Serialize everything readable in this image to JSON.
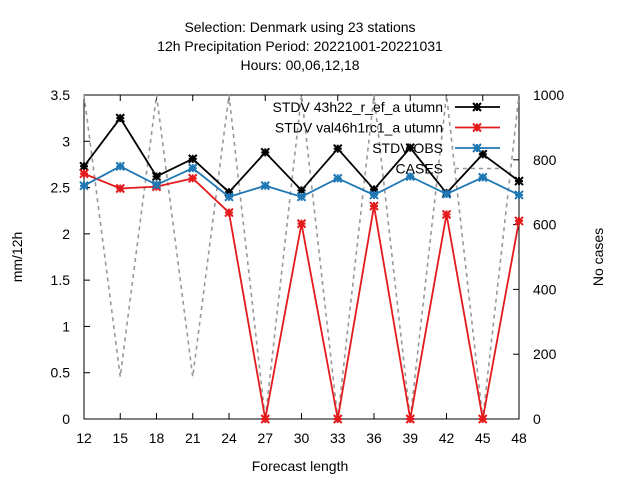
{
  "chart_data": {
    "type": "line",
    "title_lines": [
      "Selection: Denmark using    23 stations",
      "12h Precipitation    Period: 20221001-20221031",
      "Hours:  00,06,12,18"
    ],
    "xlabel": "Forecast length",
    "ylabel": "mm/12h",
    "y2label": "No cases",
    "x": [
      12,
      15,
      18,
      21,
      24,
      27,
      30,
      33,
      36,
      39,
      42,
      45,
      48
    ],
    "xlim": [
      12,
      48
    ],
    "ylim": [
      0,
      3.5
    ],
    "y2lim": [
      0,
      1000
    ],
    "x_ticks": [
      12,
      15,
      18,
      21,
      24,
      27,
      30,
      33,
      36,
      39,
      42,
      45,
      48
    ],
    "y_ticks": [
      "0",
      "0.5",
      "1",
      "1.5",
      "2",
      "2.5",
      "3",
      "3.5"
    ],
    "y2_ticks": [
      "0",
      "200",
      "400",
      "600",
      "800",
      "1000"
    ],
    "legend_position": "top-right",
    "series": [
      {
        "name": "STDV 43h22_r_ef_a utumn",
        "axis": "y",
        "color": "#000000",
        "marker": "star",
        "dash": false,
        "values": [
          2.73,
          3.25,
          2.62,
          2.81,
          2.45,
          2.88,
          2.47,
          2.92,
          2.48,
          2.93,
          2.44,
          2.86,
          2.57
        ]
      },
      {
        "name": "STDV val46h1rc1_a utumn",
        "axis": "y",
        "color": "#e41a1c",
        "marker": "star",
        "dash": false,
        "values": [
          2.65,
          2.49,
          2.51,
          2.6,
          2.23,
          0.0,
          2.11,
          0.0,
          2.3,
          0.0,
          2.21,
          0.0,
          2.14
        ]
      },
      {
        "name": "STDV OBS",
        "axis": "y",
        "color": "#1f77b4",
        "marker": "star",
        "dash": false,
        "values": [
          2.52,
          2.73,
          2.53,
          2.71,
          2.4,
          2.52,
          2.4,
          2.6,
          2.42,
          2.62,
          2.43,
          2.61,
          2.42
        ]
      },
      {
        "name": "CASES",
        "axis": "y2",
        "color": "#999999",
        "marker": "none",
        "dash": true,
        "values": [
          1000,
          130,
          1000,
          130,
          1000,
          0,
          1000,
          0,
          1000,
          0,
          1000,
          0,
          1000
        ]
      }
    ]
  }
}
